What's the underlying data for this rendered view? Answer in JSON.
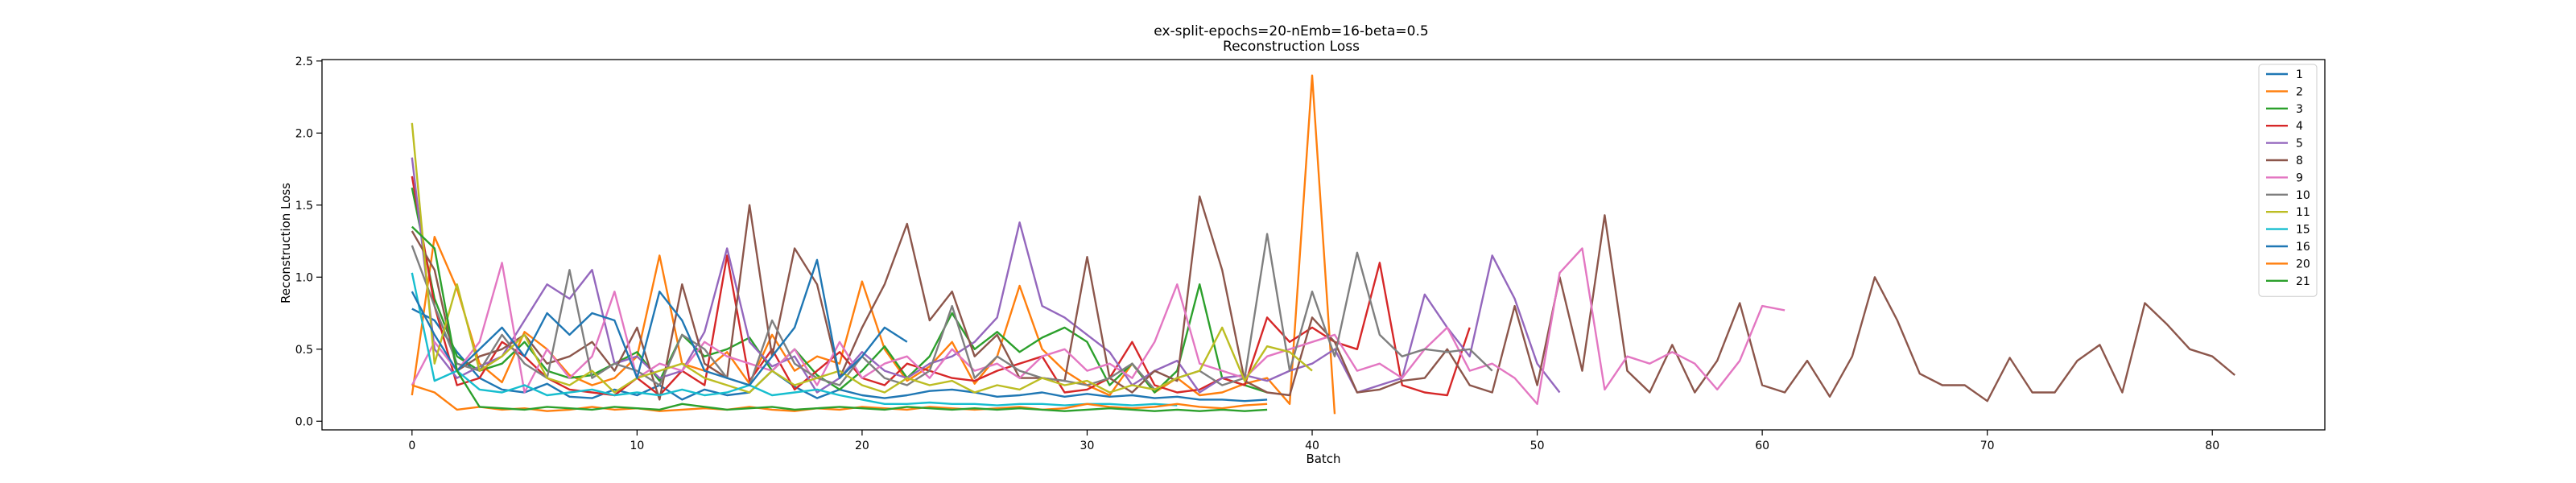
{
  "chart_data": {
    "type": "line",
    "title": "ex-split-epochs=20-nEmb=16-beta=0.5",
    "subtitle": "Reconstruction Loss",
    "xlabel": "Batch",
    "ylabel": "Reconstruction Loss",
    "xlim": [
      -4,
      85
    ],
    "ylim": [
      -0.06,
      2.51
    ],
    "xticks": [
      0,
      10,
      20,
      30,
      40,
      50,
      60,
      70,
      80
    ],
    "yticks": [
      0.0,
      0.5,
      1.0,
      1.5,
      2.0,
      2.5
    ],
    "ytick_labels": [
      "0.0",
      "0.5",
      "1.0",
      "1.5",
      "2.0",
      "2.5"
    ],
    "grid": false,
    "legend_position": "top-right",
    "series": [
      {
        "name": "1",
        "color": "#1f77b4",
        "values": [
          0.78,
          0.7,
          0.48,
          0.3,
          0.22,
          0.2,
          0.26,
          0.17,
          0.16,
          0.22,
          0.18,
          0.25,
          0.15,
          0.22,
          0.18,
          0.2,
          0.35,
          0.24,
          0.16,
          0.22,
          0.18,
          0.16,
          0.18,
          0.21,
          0.22,
          0.2,
          0.17,
          0.18,
          0.2,
          0.17,
          0.19,
          0.17,
          0.18,
          0.16,
          0.17,
          0.15,
          0.15,
          0.14,
          0.15
        ]
      },
      {
        "name": "2",
        "color": "#ff7f0e",
        "values": [
          0.18,
          1.28,
          0.92,
          0.4,
          0.27,
          0.62,
          0.5,
          0.32,
          0.25,
          0.3,
          0.45,
          1.15,
          0.4,
          0.35,
          0.48,
          0.26,
          0.6,
          0.35,
          0.45,
          0.4,
          0.97,
          0.5,
          0.28,
          0.38,
          0.55,
          0.26,
          0.45,
          0.94,
          0.5,
          0.35,
          0.25,
          0.18,
          0.4,
          0.2,
          0.3,
          0.18,
          0.2,
          0.26,
          0.3,
          0.12,
          2.4,
          0.05
        ]
      },
      {
        "name": "3",
        "color": "#2ca02c",
        "values": [
          1.62,
          0.85,
          0.45,
          0.35,
          0.4,
          0.55,
          0.35,
          0.3,
          0.32,
          0.4,
          0.48,
          0.28,
          0.6,
          0.45,
          0.5,
          0.58,
          0.35,
          0.5,
          0.32,
          0.22,
          0.35,
          0.52,
          0.3,
          0.45,
          0.75,
          0.5,
          0.62,
          0.48,
          0.58,
          0.65,
          0.55,
          0.25,
          0.4,
          0.2,
          0.35,
          0.95,
          0.3,
          0.25,
          0.2
        ]
      },
      {
        "name": "4",
        "color": "#d62728",
        "values": [
          1.7,
          0.8,
          0.25,
          0.3,
          0.55,
          0.45,
          0.3,
          0.22,
          0.2,
          0.18,
          0.3,
          0.18,
          0.35,
          0.25,
          1.15,
          0.28,
          0.5,
          0.22,
          0.35,
          0.48,
          0.3,
          0.25,
          0.4,
          0.35,
          0.3,
          0.28,
          0.35,
          0.4,
          0.45,
          0.2,
          0.22,
          0.3,
          0.55,
          0.25,
          0.2,
          0.22,
          0.3,
          0.25,
          0.72,
          0.55,
          0.65,
          0.55,
          0.5,
          1.1,
          0.25,
          0.2,
          0.18,
          0.65
        ]
      },
      {
        "name": "5",
        "color": "#9467bd",
        "values": [
          1.83,
          0.5,
          0.3,
          0.38,
          0.45,
          0.7,
          0.95,
          0.85,
          1.05,
          0.4,
          0.45,
          0.3,
          0.35,
          0.62,
          1.2,
          0.55,
          0.38,
          0.45,
          0.2,
          0.3,
          0.48,
          0.35,
          0.3,
          0.4,
          0.45,
          0.55,
          0.72,
          1.38,
          0.8,
          0.72,
          0.6,
          0.48,
          0.25,
          0.35,
          0.42,
          0.2,
          0.3,
          0.32,
          0.28,
          0.35,
          0.4,
          0.5,
          0.2,
          0.25,
          0.3,
          0.88,
          0.65,
          0.45,
          1.15,
          0.85,
          0.4,
          0.2
        ]
      },
      {
        "name": "8",
        "color": "#8c564b",
        "values": [
          1.32,
          1.05,
          0.35,
          0.45,
          0.5,
          0.6,
          0.4,
          0.45,
          0.55,
          0.35,
          0.65,
          0.15,
          0.95,
          0.4,
          0.3,
          1.5,
          0.45,
          1.2,
          0.95,
          0.3,
          0.65,
          0.95,
          1.37,
          0.7,
          0.9,
          0.45,
          0.6,
          0.3,
          0.3,
          0.28,
          1.14,
          0.3,
          0.2,
          0.35,
          0.28,
          1.56,
          1.05,
          0.28,
          0.2,
          0.18,
          0.72,
          0.55,
          0.2,
          0.22,
          0.28,
          0.3,
          0.5,
          0.25,
          0.2,
          0.8,
          0.25,
          1.0,
          0.35,
          1.43,
          0.35,
          0.2,
          0.53,
          0.2,
          0.42,
          0.82,
          0.25,
          0.2,
          0.42,
          0.17,
          0.45,
          1.0,
          0.7,
          0.33,
          0.25,
          0.25,
          0.14,
          0.44,
          0.2,
          0.2,
          0.42,
          0.53,
          0.2,
          0.82,
          0.67,
          0.5,
          0.45,
          0.32
        ]
      },
      {
        "name": "9",
        "color": "#e377c2",
        "values": [
          0.25,
          0.55,
          0.35,
          0.55,
          1.1,
          0.2,
          0.5,
          0.3,
          0.45,
          0.9,
          0.3,
          0.4,
          0.35,
          0.55,
          0.45,
          0.4,
          0.35,
          0.5,
          0.25,
          0.55,
          0.3,
          0.4,
          0.45,
          0.3,
          0.5,
          0.35,
          0.4,
          0.3,
          0.45,
          0.5,
          0.35,
          0.4,
          0.3,
          0.55,
          0.95,
          0.4,
          0.35,
          0.3,
          0.45,
          0.5,
          0.55,
          0.6,
          0.35,
          0.4,
          0.3,
          0.5,
          0.65,
          0.35,
          0.4,
          0.3,
          0.12,
          1.03,
          1.2,
          0.22,
          0.45,
          0.4,
          0.48,
          0.4,
          0.22,
          0.42,
          0.8,
          0.77
        ]
      },
      {
        "name": "10",
        "color": "#7f7f7f",
        "values": [
          1.22,
          0.8,
          0.4,
          0.35,
          0.6,
          0.4,
          0.3,
          1.05,
          0.3,
          0.4,
          0.35,
          0.25,
          0.6,
          0.5,
          0.3,
          0.25,
          0.7,
          0.4,
          0.3,
          0.25,
          0.45,
          0.3,
          0.25,
          0.35,
          0.8,
          0.3,
          0.45,
          0.35,
          0.3,
          0.28,
          0.25,
          0.3,
          0.4,
          0.22,
          0.3,
          0.35,
          0.25,
          0.3,
          1.3,
          0.35,
          0.9,
          0.45,
          1.17,
          0.6,
          0.45,
          0.5,
          0.48,
          0.5,
          0.35
        ]
      },
      {
        "name": "11",
        "color": "#bcbd22",
        "values": [
          2.07,
          0.4,
          0.95,
          0.35,
          0.45,
          0.6,
          0.3,
          0.25,
          0.35,
          0.2,
          0.3,
          0.35,
          0.4,
          0.3,
          0.25,
          0.2,
          0.35,
          0.25,
          0.3,
          0.35,
          0.25,
          0.2,
          0.3,
          0.25,
          0.28,
          0.2,
          0.25,
          0.22,
          0.3,
          0.25,
          0.28,
          0.2,
          0.25,
          0.22,
          0.3,
          0.35,
          0.65,
          0.28,
          0.52,
          0.48,
          0.35
        ]
      },
      {
        "name": "15",
        "color": "#17becf",
        "values": [
          1.03,
          0.28,
          0.35,
          0.22,
          0.2,
          0.25,
          0.18,
          0.2,
          0.22,
          0.18,
          0.2,
          0.18,
          0.22,
          0.18,
          0.2,
          0.25,
          0.18,
          0.2,
          0.22,
          0.18,
          0.15,
          0.12,
          0.12,
          0.13,
          0.12,
          0.12,
          0.11,
          0.12,
          0.12,
          0.11,
          0.12,
          0.12,
          0.11,
          0.12,
          0.11
        ]
      },
      {
        "name": "16",
        "color": "#1f77b4",
        "values": [
          0.9,
          0.6,
          0.35,
          0.5,
          0.65,
          0.45,
          0.75,
          0.6,
          0.75,
          0.7,
          0.3,
          0.9,
          0.7,
          0.35,
          0.3,
          0.25,
          0.45,
          0.65,
          1.12,
          0.3,
          0.45,
          0.65,
          0.55
        ]
      },
      {
        "name": "20",
        "color": "#ff7f0e",
        "values": [
          0.25,
          0.2,
          0.08,
          0.1,
          0.08,
          0.09,
          0.07,
          0.08,
          0.1,
          0.08,
          0.09,
          0.07,
          0.08,
          0.09,
          0.08,
          0.1,
          0.08,
          0.07,
          0.09,
          0.08,
          0.1,
          0.09,
          0.08,
          0.1,
          0.09,
          0.08,
          0.09,
          0.1,
          0.08,
          0.09,
          0.12,
          0.1,
          0.09,
          0.1,
          0.12,
          0.1,
          0.09,
          0.11,
          0.12
        ]
      },
      {
        "name": "21",
        "color": "#2ca02c",
        "values": [
          1.35,
          1.2,
          0.35,
          0.1,
          0.09,
          0.08,
          0.1,
          0.09,
          0.08,
          0.1,
          0.09,
          0.08,
          0.12,
          0.1,
          0.08,
          0.09,
          0.1,
          0.08,
          0.09,
          0.1,
          0.09,
          0.08,
          0.1,
          0.09,
          0.08,
          0.09,
          0.08,
          0.09,
          0.08,
          0.07,
          0.08,
          0.09,
          0.08,
          0.07,
          0.08,
          0.07,
          0.08,
          0.07,
          0.08
        ]
      }
    ]
  }
}
